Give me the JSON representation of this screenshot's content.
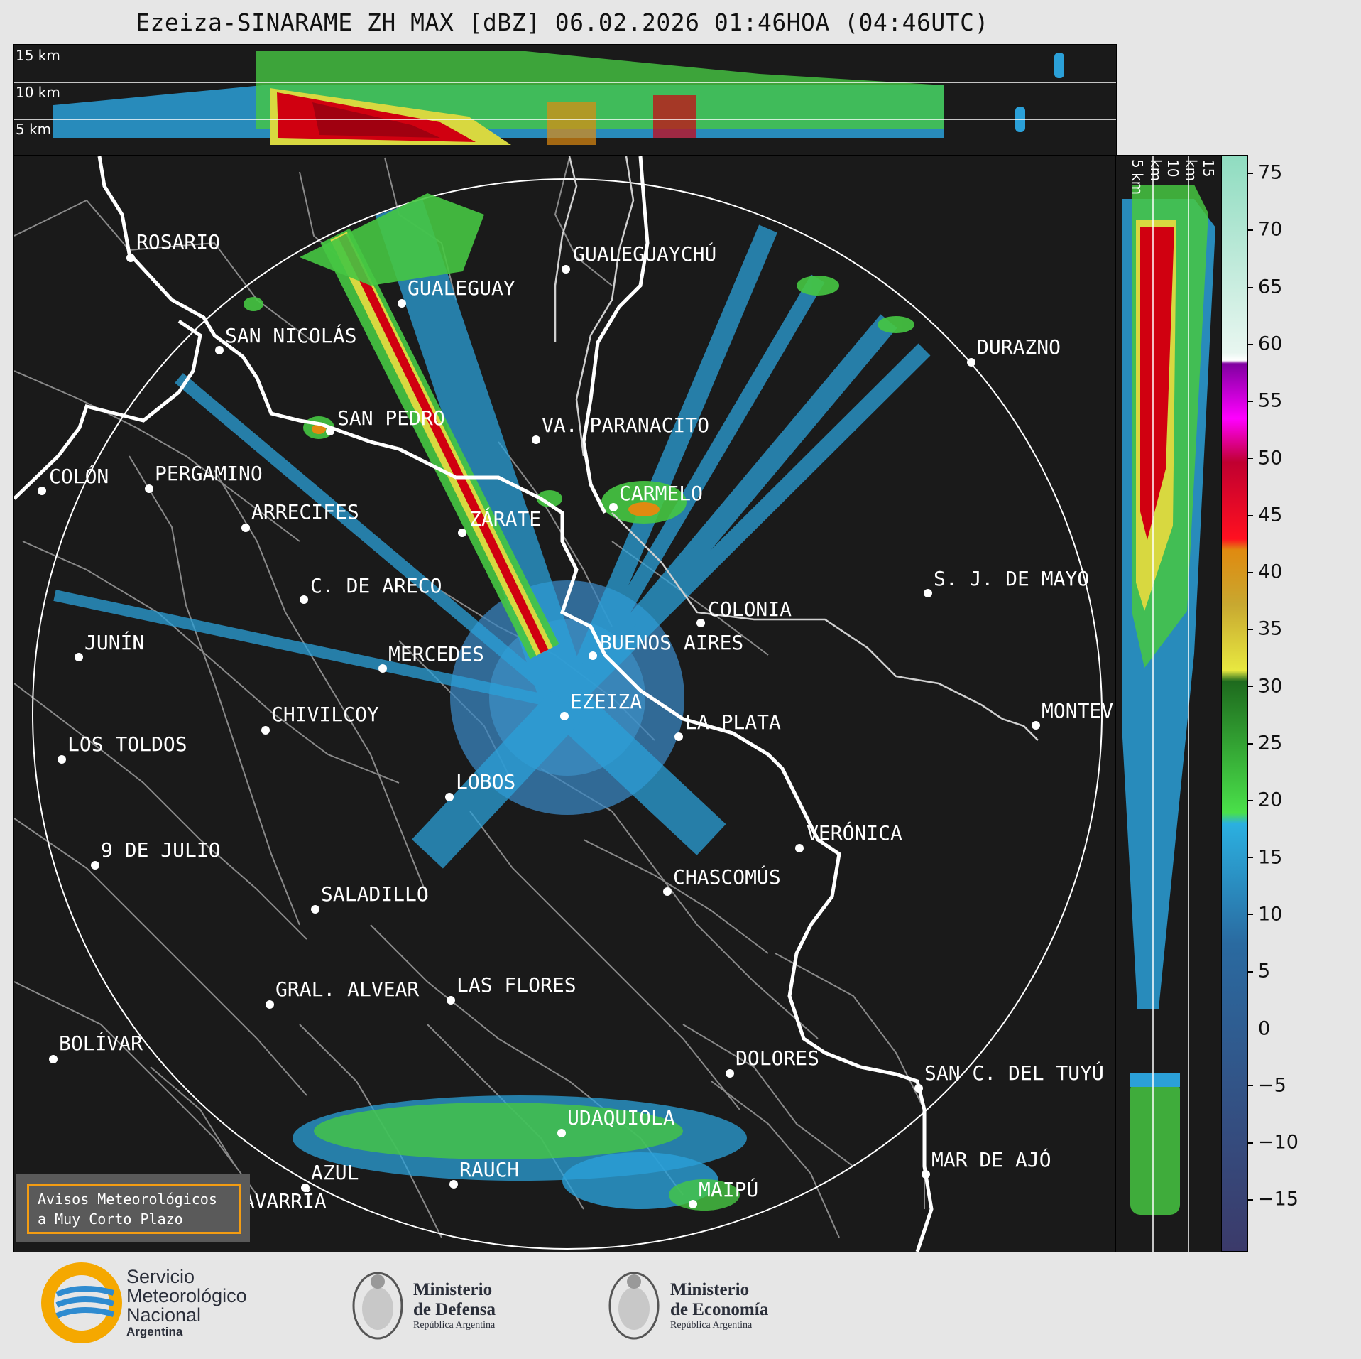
{
  "title": "Ezeiza-SINARAME ZH MAX [dBZ] 06.02.2026 01:46HOA (04:46UTC)",
  "top_panel": {
    "height_labels": [
      "15 km",
      "10 km",
      "5 km"
    ]
  },
  "side_panel": {
    "height_labels": [
      "5 km",
      "10 km",
      "15 km"
    ]
  },
  "colorbar": {
    "ticks": [
      "75",
      "70",
      "65",
      "60",
      "55",
      "50",
      "45",
      "40",
      "35",
      "30",
      "25",
      "20",
      "15",
      "10",
      "5",
      "0",
      "−5",
      "−10",
      "−15"
    ],
    "colors": {
      "teal": "#8fdcc0",
      "white": "#ffffff",
      "magenta": "#c000c0",
      "red": "#d00010",
      "orange": "#e08a10",
      "yellow": "#d8d840",
      "green": "#30c030",
      "blue": "#2ba0d8",
      "navy": "#3b4a7a"
    }
  },
  "cities": [
    {
      "id": "rosario",
      "label": "ROSARIO"
    },
    {
      "id": "gualeguaychu",
      "label": "GUALEGUAYCHÚ"
    },
    {
      "id": "gualeguay",
      "label": "GUALEGUAY"
    },
    {
      "id": "san-nicolas",
      "label": "SAN NICOLÁS"
    },
    {
      "id": "durazno",
      "label": "DURAZNO"
    },
    {
      "id": "san-pedro",
      "label": "SAN PEDRO"
    },
    {
      "id": "paranacito",
      "label": "VA. PARANACITO"
    },
    {
      "id": "colon",
      "label": "COLÓN"
    },
    {
      "id": "pergamino",
      "label": "PERGAMINO"
    },
    {
      "id": "carmelo",
      "label": "CARMELO"
    },
    {
      "id": "arrecifes",
      "label": "ARRECIFES"
    },
    {
      "id": "zarate",
      "label": "ZÁRATE"
    },
    {
      "id": "sj-mayo",
      "label": "S. J. DE MAYO"
    },
    {
      "id": "c-areco",
      "label": "C. DE ARECO"
    },
    {
      "id": "colonia",
      "label": "COLONIA"
    },
    {
      "id": "junin",
      "label": "JUNÍN"
    },
    {
      "id": "buenos-aires",
      "label": "BUENOS AIRES"
    },
    {
      "id": "mercedes",
      "label": "MERCEDES"
    },
    {
      "id": "ezeiza",
      "label": "EZEIZA"
    },
    {
      "id": "montevideo",
      "label": "MONTEV"
    },
    {
      "id": "chivilcoy",
      "label": "CHIVILCOY"
    },
    {
      "id": "la-plata",
      "label": "LA PLATA"
    },
    {
      "id": "los-toldos",
      "label": "LOS TOLDOS"
    },
    {
      "id": "lobos",
      "label": "LOBOS"
    },
    {
      "id": "veronica",
      "label": "VERÓNICA"
    },
    {
      "id": "nueve-julio",
      "label": "9 DE JULIO"
    },
    {
      "id": "chascomus",
      "label": "CHASCOMÚS"
    },
    {
      "id": "saladillo",
      "label": "SALADILLO"
    },
    {
      "id": "gral-alvear",
      "label": "GRAL. ALVEAR"
    },
    {
      "id": "las-flores",
      "label": "LAS FLORES"
    },
    {
      "id": "bolivar",
      "label": "BOLÍVAR"
    },
    {
      "id": "dolores",
      "label": "DOLORES"
    },
    {
      "id": "san-clemente",
      "label": "SAN C. DEL TUYÚ"
    },
    {
      "id": "udaquiola",
      "label": "UDAQUIOLA"
    },
    {
      "id": "mar-de-ajo",
      "label": "MAR DE AJÓ"
    },
    {
      "id": "azul",
      "label": "AZUL"
    },
    {
      "id": "rauch",
      "label": "RAUCH"
    },
    {
      "id": "olavarria",
      "label": "OLAVARRÍA"
    },
    {
      "id": "maipu",
      "label": "MAIPÚ"
    }
  ],
  "aviso": {
    "line1": "Avisos Meteorológicos",
    "line2": "a Muy Corto Plazo"
  },
  "logos": {
    "smn": {
      "line1": "Servicio",
      "line2": "Meteorológico",
      "line3": "Nacional",
      "line4": "Argentina"
    },
    "defensa": {
      "line1": "Ministerio",
      "line2": "de Defensa",
      "line3": "República Argentina"
    },
    "economia": {
      "line1": "Ministerio",
      "line2": "de Economía",
      "line3": "República Argentina"
    }
  }
}
